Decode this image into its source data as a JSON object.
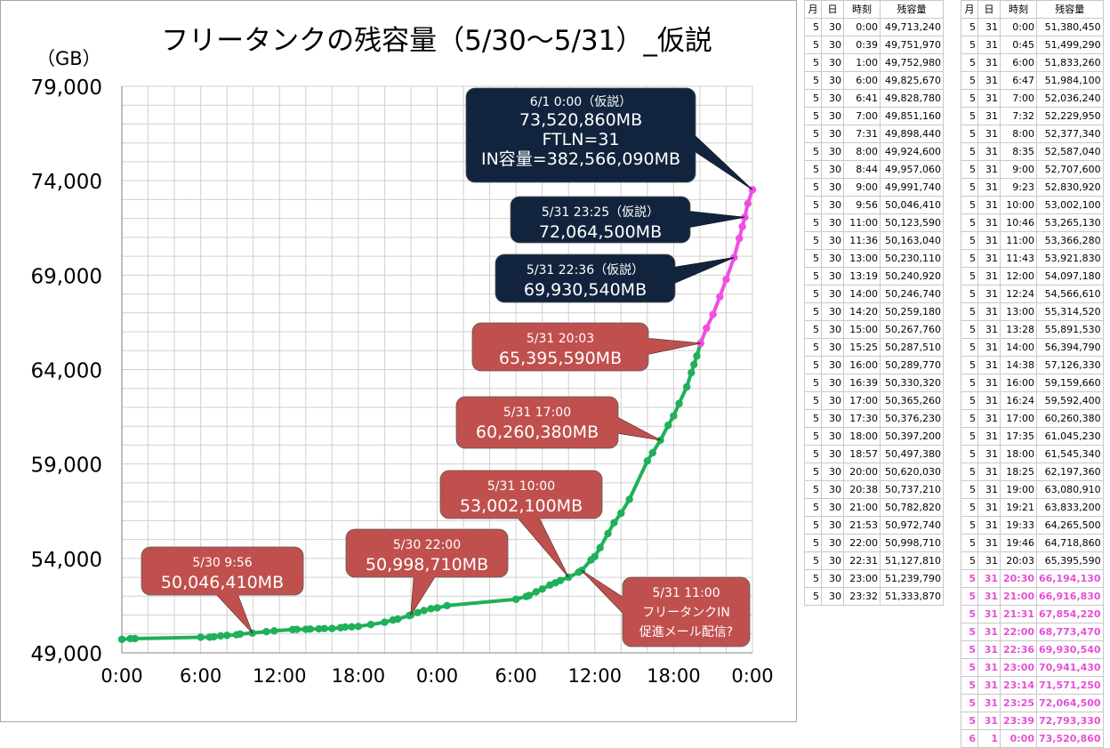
{
  "chart_data": {
    "type": "line",
    "title": "フリータンクの残容量（5/30～5/31）_仮説",
    "unit_label": "（GB）",
    "yticks": [
      "49,000",
      "54,000",
      "59,000",
      "64,000",
      "69,000",
      "74,000",
      "79,000"
    ],
    "ylim": [
      49000,
      79000
    ],
    "xticks": [
      "0:00",
      "6:00",
      "12:00",
      "18:00",
      "0:00",
      "6:00",
      "12:00",
      "18:00",
      "0:00"
    ],
    "xlim_hours": [
      0,
      48
    ],
    "grid": true,
    "colors": {
      "actual": "#1fb05a",
      "hypothesis": "#f04fe2",
      "callout_red": "#c0504d",
      "callout_navy": "#12243d"
    },
    "series": [
      {
        "style": "actual",
        "points": [
          {
            "h": 0.0,
            "v": 49713.24
          },
          {
            "h": 0.65,
            "v": 49751.97
          },
          {
            "h": 1.0,
            "v": 49752.98
          },
          {
            "h": 6.0,
            "v": 49825.67
          },
          {
            "h": 6.683,
            "v": 49828.78
          },
          {
            "h": 7.0,
            "v": 49851.16
          },
          {
            "h": 7.517,
            "v": 49898.44
          },
          {
            "h": 8.0,
            "v": 49924.6
          },
          {
            "h": 8.733,
            "v": 49957.06
          },
          {
            "h": 9.0,
            "v": 49991.74
          },
          {
            "h": 9.933,
            "v": 50046.41
          },
          {
            "h": 11.0,
            "v": 50123.59
          },
          {
            "h": 11.6,
            "v": 50163.04
          },
          {
            "h": 13.0,
            "v": 50230.11
          },
          {
            "h": 13.317,
            "v": 50240.92
          },
          {
            "h": 14.0,
            "v": 50246.74
          },
          {
            "h": 14.333,
            "v": 50259.18
          },
          {
            "h": 15.0,
            "v": 50267.76
          },
          {
            "h": 15.417,
            "v": 50287.51
          },
          {
            "h": 16.0,
            "v": 50289.77
          },
          {
            "h": 16.65,
            "v": 50330.32
          },
          {
            "h": 17.0,
            "v": 50365.26
          },
          {
            "h": 17.5,
            "v": 50376.23
          },
          {
            "h": 18.0,
            "v": 50397.2
          },
          {
            "h": 18.95,
            "v": 50497.38
          },
          {
            "h": 20.0,
            "v": 50620.03
          },
          {
            "h": 20.633,
            "v": 50737.21
          },
          {
            "h": 21.0,
            "v": 50782.82
          },
          {
            "h": 21.883,
            "v": 50972.74
          },
          {
            "h": 22.0,
            "v": 50998.71
          },
          {
            "h": 22.517,
            "v": 51127.81
          },
          {
            "h": 23.0,
            "v": 51239.79
          },
          {
            "h": 23.533,
            "v": 51333.87
          },
          {
            "h": 24.0,
            "v": 51380.45
          },
          {
            "h": 24.75,
            "v": 51499.29
          },
          {
            "h": 30.0,
            "v": 51833.26
          },
          {
            "h": 30.783,
            "v": 51984.1
          },
          {
            "h": 31.0,
            "v": 52036.24
          },
          {
            "h": 31.533,
            "v": 52229.95
          },
          {
            "h": 32.0,
            "v": 52377.34
          },
          {
            "h": 32.583,
            "v": 52587.04
          },
          {
            "h": 33.0,
            "v": 52707.6
          },
          {
            "h": 33.383,
            "v": 52830.92
          },
          {
            "h": 34.0,
            "v": 53002.1
          },
          {
            "h": 34.767,
            "v": 53265.13
          },
          {
            "h": 35.0,
            "v": 53366.28
          },
          {
            "h": 35.717,
            "v": 53921.83
          },
          {
            "h": 36.0,
            "v": 54097.18
          },
          {
            "h": 36.4,
            "v": 54566.61
          },
          {
            "h": 37.0,
            "v": 55314.52
          },
          {
            "h": 37.467,
            "v": 55891.53
          },
          {
            "h": 38.0,
            "v": 56394.79
          },
          {
            "h": 38.633,
            "v": 57126.33
          },
          {
            "h": 40.0,
            "v": 59159.66
          },
          {
            "h": 40.4,
            "v": 59592.4
          },
          {
            "h": 41.0,
            "v": 60260.38
          },
          {
            "h": 41.583,
            "v": 61045.23
          },
          {
            "h": 42.0,
            "v": 61545.34
          },
          {
            "h": 42.417,
            "v": 62197.36
          },
          {
            "h": 43.0,
            "v": 63080.91
          },
          {
            "h": 43.35,
            "v": 63833.2
          },
          {
            "h": 43.55,
            "v": 64265.5
          },
          {
            "h": 43.767,
            "v": 64718.86
          },
          {
            "h": 44.05,
            "v": 65395.59
          }
        ]
      },
      {
        "style": "hypothesis",
        "points": [
          {
            "h": 44.05,
            "v": 65395.59
          },
          {
            "h": 44.5,
            "v": 66194.13
          },
          {
            "h": 45.0,
            "v": 66916.83
          },
          {
            "h": 45.517,
            "v": 67854.22
          },
          {
            "h": 46.0,
            "v": 68773.47
          },
          {
            "h": 46.6,
            "v": 69930.54
          },
          {
            "h": 47.0,
            "v": 70941.43
          },
          {
            "h": 47.233,
            "v": 71571.25
          },
          {
            "h": 47.417,
            "v": 72064.5
          },
          {
            "h": 47.65,
            "v": 72793.33
          },
          {
            "h": 48.0,
            "v": 73520.86
          }
        ]
      }
    ],
    "callouts": [
      {
        "style": "red",
        "lines": [
          "5/30 9:56",
          "50,046,410MB"
        ],
        "h": 9.933,
        "v": 50046.41
      },
      {
        "style": "red",
        "lines": [
          "5/30 22:00",
          "50,998,710MB"
        ],
        "h": 22.0,
        "v": 50998.71
      },
      {
        "style": "red",
        "lines": [
          "5/31 10:00",
          "53,002,100MB"
        ],
        "h": 34.0,
        "v": 53002.1
      },
      {
        "style": "red",
        "lines": [
          "5/31 11:00",
          "フリータンクIN",
          "促進メール配信?"
        ],
        "h": 35.0,
        "v": 53366.28
      },
      {
        "style": "red",
        "lines": [
          "5/31 17:00",
          "60,260,380MB"
        ],
        "h": 41.0,
        "v": 60260.38
      },
      {
        "style": "red",
        "lines": [
          "5/31 20:03",
          "65,395,590MB"
        ],
        "h": 44.05,
        "v": 65395.59
      },
      {
        "style": "navy",
        "lines": [
          "5/31 22:36（仮説）",
          "69,930,540MB"
        ],
        "h": 46.6,
        "v": 69930.54
      },
      {
        "style": "navy",
        "lines": [
          "5/31 23:25（仮説）",
          "72,064,500MB"
        ],
        "h": 47.417,
        "v": 72064.5
      },
      {
        "style": "navy",
        "lines": [
          "6/1 0:00（仮説）",
          "73,520,860MB",
          "FTLN=31",
          "IN容量=382,566,090MB"
        ],
        "h": 48.0,
        "v": 73520.86
      }
    ]
  },
  "table_headers": [
    "月",
    "日",
    "時刻",
    "残容量"
  ],
  "table1_rows": [
    [
      "5",
      "30",
      "0:00",
      "49,713,240"
    ],
    [
      "5",
      "30",
      "0:39",
      "49,751,970"
    ],
    [
      "5",
      "30",
      "1:00",
      "49,752,980"
    ],
    [
      "5",
      "30",
      "6:00",
      "49,825,670"
    ],
    [
      "5",
      "30",
      "6:41",
      "49,828,780"
    ],
    [
      "5",
      "30",
      "7:00",
      "49,851,160"
    ],
    [
      "5",
      "30",
      "7:31",
      "49,898,440"
    ],
    [
      "5",
      "30",
      "8:00",
      "49,924,600"
    ],
    [
      "5",
      "30",
      "8:44",
      "49,957,060"
    ],
    [
      "5",
      "30",
      "9:00",
      "49,991,740"
    ],
    [
      "5",
      "30",
      "9:56",
      "50,046,410"
    ],
    [
      "5",
      "30",
      "11:00",
      "50,123,590"
    ],
    [
      "5",
      "30",
      "11:36",
      "50,163,040"
    ],
    [
      "5",
      "30",
      "13:00",
      "50,230,110"
    ],
    [
      "5",
      "30",
      "13:19",
      "50,240,920"
    ],
    [
      "5",
      "30",
      "14:00",
      "50,246,740"
    ],
    [
      "5",
      "30",
      "14:20",
      "50,259,180"
    ],
    [
      "5",
      "30",
      "15:00",
      "50,267,760"
    ],
    [
      "5",
      "30",
      "15:25",
      "50,287,510"
    ],
    [
      "5",
      "30",
      "16:00",
      "50,289,770"
    ],
    [
      "5",
      "30",
      "16:39",
      "50,330,320"
    ],
    [
      "5",
      "30",
      "17:00",
      "50,365,260"
    ],
    [
      "5",
      "30",
      "17:30",
      "50,376,230"
    ],
    [
      "5",
      "30",
      "18:00",
      "50,397,200"
    ],
    [
      "5",
      "30",
      "18:57",
      "50,497,380"
    ],
    [
      "5",
      "30",
      "20:00",
      "50,620,030"
    ],
    [
      "5",
      "30",
      "20:38",
      "50,737,210"
    ],
    [
      "5",
      "30",
      "21:00",
      "50,782,820"
    ],
    [
      "5",
      "30",
      "21:53",
      "50,972,740"
    ],
    [
      "5",
      "30",
      "22:00",
      "50,998,710"
    ],
    [
      "5",
      "30",
      "22:31",
      "51,127,810"
    ],
    [
      "5",
      "30",
      "23:00",
      "51,239,790"
    ],
    [
      "5",
      "30",
      "23:32",
      "51,333,870"
    ]
  ],
  "table2_rows": [
    {
      "cells": [
        "5",
        "31",
        "0:00",
        "51,380,450"
      ],
      "hyp": false
    },
    {
      "cells": [
        "5",
        "31",
        "0:45",
        "51,499,290"
      ],
      "hyp": false
    },
    {
      "cells": [
        "5",
        "31",
        "6:00",
        "51,833,260"
      ],
      "hyp": false
    },
    {
      "cells": [
        "5",
        "31",
        "6:47",
        "51,984,100"
      ],
      "hyp": false
    },
    {
      "cells": [
        "5",
        "31",
        "7:00",
        "52,036,240"
      ],
      "hyp": false
    },
    {
      "cells": [
        "5",
        "31",
        "7:32",
        "52,229,950"
      ],
      "hyp": false
    },
    {
      "cells": [
        "5",
        "31",
        "8:00",
        "52,377,340"
      ],
      "hyp": false
    },
    {
      "cells": [
        "5",
        "31",
        "8:35",
        "52,587,040"
      ],
      "hyp": false
    },
    {
      "cells": [
        "5",
        "31",
        "9:00",
        "52,707,600"
      ],
      "hyp": false
    },
    {
      "cells": [
        "5",
        "31",
        "9:23",
        "52,830,920"
      ],
      "hyp": false
    },
    {
      "cells": [
        "5",
        "31",
        "10:00",
        "53,002,100"
      ],
      "hyp": false
    },
    {
      "cells": [
        "5",
        "31",
        "10:46",
        "53,265,130"
      ],
      "hyp": false
    },
    {
      "cells": [
        "5",
        "31",
        "11:00",
        "53,366,280"
      ],
      "hyp": false
    },
    {
      "cells": [
        "5",
        "31",
        "11:43",
        "53,921,830"
      ],
      "hyp": false
    },
    {
      "cells": [
        "5",
        "31",
        "12:00",
        "54,097,180"
      ],
      "hyp": false
    },
    {
      "cells": [
        "5",
        "31",
        "12:24",
        "54,566,610"
      ],
      "hyp": false
    },
    {
      "cells": [
        "5",
        "31",
        "13:00",
        "55,314,520"
      ],
      "hyp": false
    },
    {
      "cells": [
        "5",
        "31",
        "13:28",
        "55,891,530"
      ],
      "hyp": false
    },
    {
      "cells": [
        "5",
        "31",
        "14:00",
        "56,394,790"
      ],
      "hyp": false
    },
    {
      "cells": [
        "5",
        "31",
        "14:38",
        "57,126,330"
      ],
      "hyp": false
    },
    {
      "cells": [
        "5",
        "31",
        "16:00",
        "59,159,660"
      ],
      "hyp": false
    },
    {
      "cells": [
        "5",
        "31",
        "16:24",
        "59,592,400"
      ],
      "hyp": false
    },
    {
      "cells": [
        "5",
        "31",
        "17:00",
        "60,260,380"
      ],
      "hyp": false
    },
    {
      "cells": [
        "5",
        "31",
        "17:35",
        "61,045,230"
      ],
      "hyp": false
    },
    {
      "cells": [
        "5",
        "31",
        "18:00",
        "61,545,340"
      ],
      "hyp": false
    },
    {
      "cells": [
        "5",
        "31",
        "18:25",
        "62,197,360"
      ],
      "hyp": false
    },
    {
      "cells": [
        "5",
        "31",
        "19:00",
        "63,080,910"
      ],
      "hyp": false
    },
    {
      "cells": [
        "5",
        "31",
        "19:21",
        "63,833,200"
      ],
      "hyp": false
    },
    {
      "cells": [
        "5",
        "31",
        "19:33",
        "64,265,500"
      ],
      "hyp": false
    },
    {
      "cells": [
        "5",
        "31",
        "19:46",
        "64,718,860"
      ],
      "hyp": false
    },
    {
      "cells": [
        "5",
        "31",
        "20:03",
        "65,395,590"
      ],
      "hyp": false
    },
    {
      "cells": [
        "5",
        "31",
        "20:30",
        "66,194,130"
      ],
      "hyp": true
    },
    {
      "cells": [
        "5",
        "31",
        "21:00",
        "66,916,830"
      ],
      "hyp": true
    },
    {
      "cells": [
        "5",
        "31",
        "21:31",
        "67,854,220"
      ],
      "hyp": true
    },
    {
      "cells": [
        "5",
        "31",
        "22:00",
        "68,773,470"
      ],
      "hyp": true
    },
    {
      "cells": [
        "5",
        "31",
        "22:36",
        "69,930,540"
      ],
      "hyp": true
    },
    {
      "cells": [
        "5",
        "31",
        "23:00",
        "70,941,430"
      ],
      "hyp": true
    },
    {
      "cells": [
        "5",
        "31",
        "23:14",
        "71,571,250"
      ],
      "hyp": true
    },
    {
      "cells": [
        "5",
        "31",
        "23:25",
        "72,064,500"
      ],
      "hyp": true
    },
    {
      "cells": [
        "5",
        "31",
        "23:39",
        "72,793,330"
      ],
      "hyp": true
    },
    {
      "cells": [
        "6",
        "1",
        "0:00",
        "73,520,860"
      ],
      "hyp": true
    }
  ]
}
